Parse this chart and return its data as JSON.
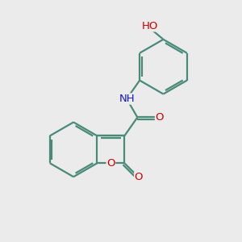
{
  "bg_color": "#ebebeb",
  "bond_color": "#4a8a78",
  "bond_width": 1.6,
  "atom_colors": {
    "O": "#cc0000",
    "N": "#1414cc",
    "H": "#4a8a78",
    "C": "#4a8a78"
  },
  "font_size": 9.5,
  "figsize": [
    3.0,
    3.0
  ],
  "dpi": 100
}
